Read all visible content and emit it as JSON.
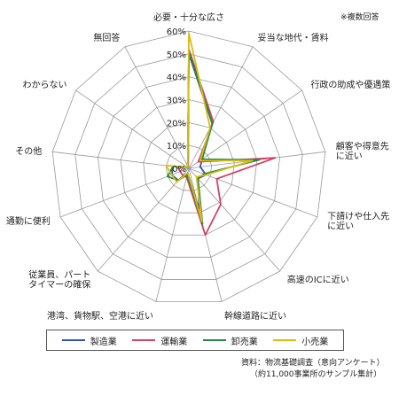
{
  "note": "※複数回答",
  "source": {
    "line1": "資料：物流基礎調査（意向アンケート）",
    "line2": "（約11,000事業所のサンプル集計）"
  },
  "chart_data": {
    "type": "radar",
    "title": "",
    "axes": [
      "必要・十分な広さ",
      "妥当な地代・賃料",
      "行政の助成や優遇策",
      "顧客や得意先に近い",
      "下請けや仕入先に近い",
      "高速のICに近い",
      "幹線道路に近い",
      "港湾、貨物駅、空港に近い",
      "従業員、パートタイマーの確保",
      "通勤に便利",
      "その他",
      "わからない",
      "無回答"
    ],
    "axis_label_lines": [
      [
        "必要・十分な広さ"
      ],
      [
        "妥当な地代・賃料"
      ],
      [
        "行政の助成や優遇策"
      ],
      [
        "顧客や得意先",
        "に近い"
      ],
      [
        "下請けや仕入先",
        "に近い"
      ],
      [
        "高速のICに近い"
      ],
      [
        "幹線道路に近い"
      ],
      [
        "港湾、貨物駅、空港に近い"
      ],
      [
        "従業員、パート",
        "タイマーの確保"
      ],
      [
        "通勤に便利"
      ],
      [
        "その他"
      ],
      [
        "わからない"
      ],
      [
        "無回答"
      ]
    ],
    "radial_range": [
      0,
      60
    ],
    "ticks": [
      "0%",
      "10%",
      "20%",
      "30%",
      "40%",
      "50%",
      "60%"
    ],
    "tick_values": [
      0,
      10,
      20,
      30,
      40,
      50,
      60
    ],
    "grid": true,
    "legend_position": "bottom",
    "series": [
      {
        "name": "製造業",
        "color": "#3355aa",
        "values": [
          50,
          22,
          7,
          5,
          8,
          6,
          19,
          2,
          7,
          8,
          7,
          1,
          1
        ]
      },
      {
        "name": "運輸業",
        "color": "#cc4466",
        "values": [
          52,
          23,
          5,
          38,
          13,
          21,
          30,
          4,
          4,
          4,
          5,
          1,
          1
        ]
      },
      {
        "name": "卸売業",
        "color": "#228844",
        "values": [
          51,
          22,
          7,
          31,
          7,
          6,
          25,
          3,
          7,
          10,
          7,
          1,
          1
        ]
      },
      {
        "name": "小売業",
        "color": "#ddbb11",
        "values": [
          59,
          20,
          6,
          28,
          8,
          5,
          24,
          2,
          8,
          8,
          10,
          1,
          1
        ]
      }
    ]
  }
}
